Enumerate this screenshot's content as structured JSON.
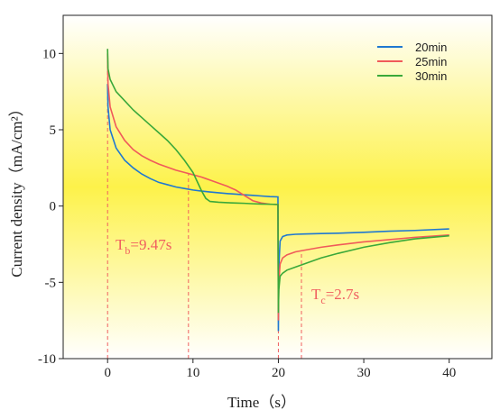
{
  "chart_data": {
    "type": "line",
    "xlabel": "Time（s）",
    "ylabel": "Current density（mA/cm²）",
    "x": [
      0,
      0.05,
      0.3,
      1,
      2,
      3,
      4,
      5,
      6,
      7,
      8,
      9,
      10,
      11,
      11.5,
      12,
      13,
      14,
      15,
      16,
      17,
      18,
      19,
      19.95,
      20,
      20.05,
      20.2,
      20.5,
      21,
      22,
      23,
      25,
      27,
      30,
      33,
      36,
      40
    ],
    "series": [
      {
        "name": "20min",
        "color": "#1f78d1",
        "values": [
          8,
          6.5,
          5,
          3.8,
          3,
          2.5,
          2.1,
          1.8,
          1.55,
          1.4,
          1.25,
          1.15,
          1.05,
          0.98,
          0.95,
          0.92,
          0.87,
          0.82,
          0.78,
          0.74,
          0.7,
          0.66,
          0.62,
          0.6,
          -8.2,
          -4,
          -2.3,
          -2,
          -1.9,
          -1.85,
          -1.83,
          -1.8,
          -1.78,
          -1.72,
          -1.65,
          -1.6,
          -1.5
        ]
      },
      {
        "name": "25min",
        "color": "#f05a5a",
        "values": [
          10,
          8,
          6.5,
          5.2,
          4.3,
          3.7,
          3.3,
          3,
          2.75,
          2.55,
          2.35,
          2.2,
          2.05,
          1.9,
          1.8,
          1.7,
          1.5,
          1.3,
          1.05,
          0.7,
          0.35,
          0.2,
          0.12,
          0.1,
          -7.5,
          -5,
          -3.8,
          -3.4,
          -3.2,
          -3,
          -2.9,
          -2.7,
          -2.55,
          -2.35,
          -2.2,
          -2.05,
          -1.9
        ]
      },
      {
        "name": "30min",
        "color": "#3aa83a",
        "values": [
          10.3,
          9,
          8.3,
          7.5,
          6.9,
          6.3,
          5.8,
          5.3,
          4.8,
          4.3,
          3.7,
          3,
          2.2,
          1,
          0.5,
          0.3,
          0.25,
          0.22,
          0.2,
          0.18,
          0.15,
          0.13,
          0.12,
          0.1,
          -7,
          -5.5,
          -4.6,
          -4.4,
          -4.2,
          -4,
          -3.8,
          -3.4,
          -3.1,
          -2.7,
          -2.4,
          -2.15,
          -1.95
        ]
      }
    ],
    "xlim": [
      -5.2,
      45
    ],
    "ylim": [
      -10,
      12.5
    ],
    "xticks": [
      0,
      10,
      20,
      30,
      40
    ],
    "yticks": [
      -10,
      -5,
      0,
      5,
      10
    ],
    "reference_lines": [
      {
        "x": 0,
        "top": 10.3
      },
      {
        "x": 9.47,
        "top": 2.1
      },
      {
        "x": 20,
        "top": 0.1
      },
      {
        "x": 22.7,
        "top": -3.1
      }
    ],
    "annotations": [
      {
        "main": "T",
        "sub": "b",
        "rest": "=9.47s"
      },
      {
        "main": "T",
        "sub": "c",
        "rest": "=2.7s"
      }
    ],
    "annotation_color": "#f06060",
    "legend": "upper right"
  }
}
